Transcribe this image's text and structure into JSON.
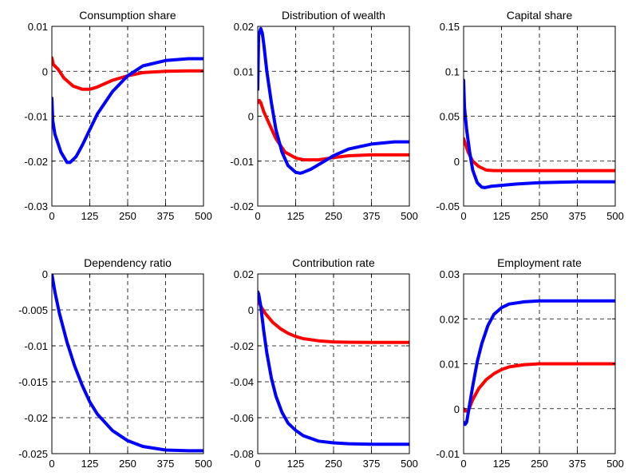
{
  "chart_data": [
    {
      "type": "line",
      "title": "Consumption share",
      "xlim": [
        0,
        500
      ],
      "ylim": [
        -0.03,
        0.01
      ],
      "xticks": [
        0,
        125,
        250,
        375,
        500
      ],
      "xtick_labels": [
        "0",
        "125",
        "250",
        "375",
        "500"
      ],
      "yticks": [
        -0.03,
        -0.02,
        -0.01,
        0,
        0.01
      ],
      "ytick_labels": [
        "-0.03",
        "-0.02",
        "-0.01",
        "0",
        "0.01"
      ],
      "grid": true,
      "series": [
        {
          "color": "#ff0000",
          "x": [
            0,
            5,
            20,
            40,
            70,
            100,
            125,
            150,
            200,
            250,
            300,
            375,
            450,
            500
          ],
          "y": [
            0.003,
            0.0015,
            0.0005,
            -0.0015,
            -0.0033,
            -0.004,
            -0.004,
            -0.0035,
            -0.002,
            -0.001,
            -0.0003,
            0.0,
            0.0001,
            0.0001
          ]
        },
        {
          "color": "#0000ff",
          "x": [
            0,
            3,
            10,
            30,
            50,
            60,
            80,
            100,
            125,
            150,
            200,
            250,
            300,
            375,
            450,
            500
          ],
          "y": [
            -0.006,
            -0.011,
            -0.014,
            -0.018,
            -0.0203,
            -0.0203,
            -0.019,
            -0.0165,
            -0.013,
            -0.0095,
            -0.0045,
            -0.001,
            0.0012,
            0.0024,
            0.0028,
            0.0028
          ]
        }
      ]
    },
    {
      "type": "line",
      "title": "Distribution of wealth",
      "xlim": [
        0,
        500
      ],
      "ylim": [
        -0.02,
        0.02
      ],
      "xticks": [
        0,
        125,
        250,
        375,
        500
      ],
      "xtick_labels": [
        "0",
        "125",
        "250",
        "375",
        "500"
      ],
      "yticks": [
        -0.02,
        -0.01,
        0,
        0.01,
        0.02
      ],
      "ytick_labels": [
        "-0.02",
        "-0.01",
        "0",
        "0.01",
        "0.02"
      ],
      "grid": true,
      "series": [
        {
          "color": "#ff0000",
          "x": [
            0,
            5,
            10,
            20,
            40,
            60,
            90,
            125,
            150,
            200,
            250,
            300,
            375,
            450,
            500
          ],
          "y": [
            0.003,
            0.0035,
            0.003,
            0.001,
            -0.002,
            -0.005,
            -0.008,
            -0.0093,
            -0.0097,
            -0.0097,
            -0.0092,
            -0.0088,
            -0.0086,
            -0.0086,
            -0.0086
          ]
        },
        {
          "color": "#0000ff",
          "x": [
            0,
            3,
            10,
            15,
            20,
            30,
            45,
            60,
            80,
            100,
            125,
            140,
            150,
            175,
            200,
            250,
            300,
            375,
            450,
            500
          ],
          "y": [
            0.006,
            0.018,
            0.0195,
            0.0185,
            0.016,
            0.01,
            0.003,
            -0.003,
            -0.008,
            -0.011,
            -0.0125,
            -0.0127,
            -0.0125,
            -0.0118,
            -0.0108,
            -0.0088,
            -0.0073,
            -0.0062,
            -0.0057,
            -0.0057
          ]
        }
      ]
    },
    {
      "type": "line",
      "title": "Capital share",
      "xlim": [
        0,
        500
      ],
      "ylim": [
        -0.05,
        0.15
      ],
      "xticks": [
        0,
        125,
        250,
        375,
        500
      ],
      "xtick_labels": [
        "0",
        "125",
        "250",
        "375",
        "500"
      ],
      "yticks": [
        -0.05,
        0,
        0.05,
        0.1,
        0.15
      ],
      "ytick_labels": [
        "-0.05",
        "0",
        "0.05",
        "0.1",
        "0.15"
      ],
      "grid": true,
      "series": [
        {
          "color": "#ff0000",
          "x": [
            0,
            5,
            15,
            30,
            50,
            75,
            100,
            150,
            250,
            375,
            500
          ],
          "y": [
            0.025,
            0.02,
            0.01,
            0.0,
            -0.006,
            -0.01,
            -0.0105,
            -0.0105,
            -0.0105,
            -0.0105,
            -0.0105
          ]
        },
        {
          "color": "#0000ff",
          "x": [
            0,
            3,
            10,
            20,
            30,
            45,
            60,
            70,
            90,
            125,
            175,
            250,
            375,
            500
          ],
          "y": [
            0.09,
            0.06,
            0.035,
            0.01,
            -0.01,
            -0.024,
            -0.029,
            -0.0295,
            -0.028,
            -0.027,
            -0.0255,
            -0.024,
            -0.023,
            -0.023
          ]
        }
      ]
    },
    {
      "type": "line",
      "title": "Dependency ratio",
      "xlim": [
        0,
        500
      ],
      "ylim": [
        -0.025,
        0
      ],
      "xticks": [
        0,
        125,
        250,
        375,
        500
      ],
      "xtick_labels": [
        "0",
        "125",
        "250",
        "375",
        "500"
      ],
      "yticks": [
        -0.025,
        -0.02,
        -0.015,
        -0.01,
        -0.005,
        0
      ],
      "ytick_labels": [
        "-0.025",
        "-0.02",
        "-0.015",
        "-0.01",
        "-0.005",
        "0"
      ],
      "grid": true,
      "series": [
        {
          "color": "#0000ff",
          "x": [
            0,
            10,
            25,
            50,
            75,
            100,
            125,
            150,
            200,
            250,
            300,
            375,
            450,
            500
          ],
          "y": [
            0.0,
            -0.0025,
            -0.0055,
            -0.0095,
            -0.0128,
            -0.0155,
            -0.0178,
            -0.0195,
            -0.0218,
            -0.0232,
            -0.024,
            -0.0245,
            -0.0246,
            -0.0246
          ]
        }
      ]
    },
    {
      "type": "line",
      "title": "Contribution rate",
      "xlim": [
        0,
        500
      ],
      "ylim": [
        -0.08,
        0.02
      ],
      "xticks": [
        0,
        125,
        250,
        375,
        500
      ],
      "xtick_labels": [
        "0",
        "125",
        "250",
        "375",
        "500"
      ],
      "yticks": [
        -0.08,
        -0.06,
        -0.04,
        -0.02,
        0,
        0.02
      ],
      "ytick_labels": [
        "-0.08",
        "-0.06",
        "-0.04",
        "-0.02",
        "0",
        "0.02"
      ],
      "grid": true,
      "series": [
        {
          "color": "#ff0000",
          "x": [
            0,
            10,
            25,
            50,
            75,
            100,
            125,
            150,
            200,
            250,
            300,
            375,
            450,
            500
          ],
          "y": [
            0.006,
            0.002,
            -0.002,
            -0.007,
            -0.0105,
            -0.013,
            -0.0148,
            -0.016,
            -0.0172,
            -0.0178,
            -0.018,
            -0.0181,
            -0.0181,
            -0.0181
          ]
        },
        {
          "color": "#0000ff",
          "x": [
            0,
            3,
            10,
            20,
            30,
            45,
            60,
            80,
            100,
            125,
            150,
            200,
            250,
            300,
            375,
            450,
            500
          ],
          "y": [
            0.01,
            0.009,
            0.002,
            -0.012,
            -0.024,
            -0.038,
            -0.048,
            -0.057,
            -0.063,
            -0.067,
            -0.07,
            -0.073,
            -0.074,
            -0.0745,
            -0.0748,
            -0.0748,
            -0.0748
          ]
        }
      ]
    },
    {
      "type": "line",
      "title": "Employment rate",
      "xlim": [
        0,
        500
      ],
      "ylim": [
        -0.01,
        0.03
      ],
      "xticks": [
        0,
        125,
        250,
        375,
        500
      ],
      "xtick_labels": [
        "0",
        "125",
        "250",
        "375",
        "500"
      ],
      "yticks": [
        -0.01,
        0,
        0.01,
        0.02,
        0.03
      ],
      "ytick_labels": [
        "-0.01",
        "0",
        "0.01",
        "0.02",
        "0.03"
      ],
      "grid": true,
      "series": [
        {
          "color": "#ff0000",
          "x": [
            0,
            5,
            15,
            30,
            50,
            75,
            100,
            125,
            150,
            200,
            250,
            300,
            375,
            450,
            500
          ],
          "y": [
            0.0,
            -0.0005,
            -0.0005,
            0.002,
            0.0045,
            0.0065,
            0.0078,
            0.0087,
            0.0093,
            0.0098,
            0.01,
            0.01,
            0.01,
            0.01,
            0.01
          ]
        },
        {
          "color": "#0000ff",
          "x": [
            0,
            5,
            10,
            20,
            30,
            45,
            60,
            80,
            100,
            125,
            150,
            200,
            250,
            300,
            375,
            450,
            500
          ],
          "y": [
            -0.003,
            -0.0035,
            -0.003,
            0.001,
            0.005,
            0.0105,
            0.0145,
            0.0185,
            0.021,
            0.0225,
            0.0233,
            0.0238,
            0.024,
            0.024,
            0.024,
            0.024,
            0.024
          ]
        }
      ]
    }
  ]
}
